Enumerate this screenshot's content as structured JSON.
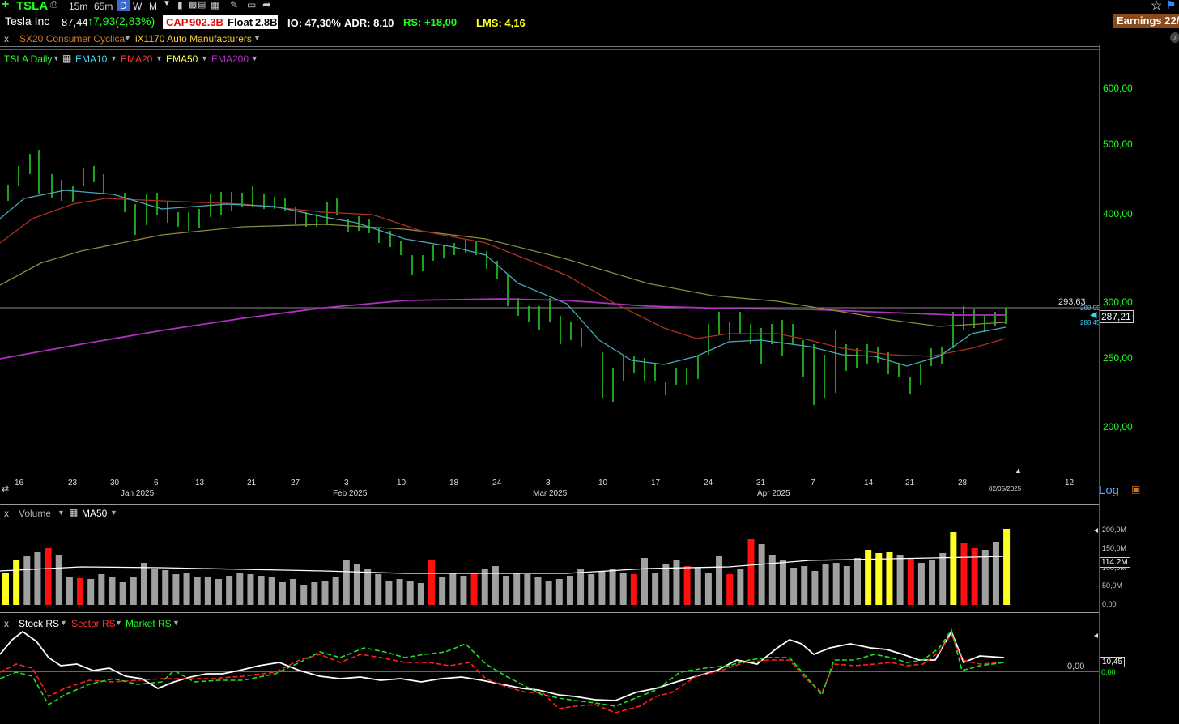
{
  "toolbar": {
    "ticker": "TSLA",
    "intervals": [
      "15m",
      "65m",
      "D",
      "W",
      "M"
    ],
    "active_interval": "D"
  },
  "info": {
    "name": "Tesla Inc",
    "price_prefix": "87,44",
    "change": "↑7,93(2,83%)",
    "cap_label": "CAP",
    "cap": "902.3B",
    "float_label": "Float",
    "float": "2.8B",
    "io": "IO: 47,30%",
    "adr": "ADR: 8,10",
    "rs": "RS:  +18,00",
    "lms": "LMS: 4,16",
    "earnings": "Earnings 22/"
  },
  "industry": {
    "close": "x",
    "sector": "SX20 Consumer Cyclical",
    "group": "iX1170 Auto Manufacturers"
  },
  "indicators": {
    "main": "TSLA Daily",
    "ema10": "EMA10",
    "ema20": "EMA20",
    "ema50": "EMA50",
    "ema200": "EMA200"
  },
  "price_axis": [
    "600,00",
    "500,00",
    "400,00",
    "300,00",
    "250,00",
    "200,00"
  ],
  "price_labels": {
    "hline": "293,63",
    "ema_a": "288,55",
    "ema_b": "288,45",
    "last": "287,21"
  },
  "x_axis": {
    "days": [
      "16",
      "23",
      "30",
      "6",
      "13",
      "21",
      "27",
      "3",
      "10",
      "18",
      "24",
      "3",
      "10",
      "17",
      "24",
      "31",
      "7",
      "14",
      "21",
      "28",
      "12"
    ],
    "months": [
      "Jan 2025",
      "Feb 2025",
      "Mar 2025",
      "Apr 2025"
    ],
    "date_marker": "02/05/2025",
    "scale": "Log"
  },
  "volume": {
    "close": "x",
    "label": "Volume",
    "ma_label": "MA50",
    "axis": [
      "200,0M",
      "150,0M",
      "100,0M",
      "50,0M",
      "0,00"
    ],
    "current": "114.2M"
  },
  "rs_panel": {
    "close": "x",
    "stock": "Stock RS",
    "sector": "Sector RS",
    "market": "Market RS",
    "zero": "0,00",
    "value_a": "10,45",
    "value_b": "0,00"
  },
  "colors": {
    "up": "#22cc22",
    "ema10": "#4aa8b8",
    "ema20": "#b03020",
    "ema50": "#8a8a40",
    "ema200": "#b030c0",
    "vol_gray": "#a0a0a0",
    "vol_red": "#ff1010",
    "vol_yellow": "#ffff20"
  }
}
